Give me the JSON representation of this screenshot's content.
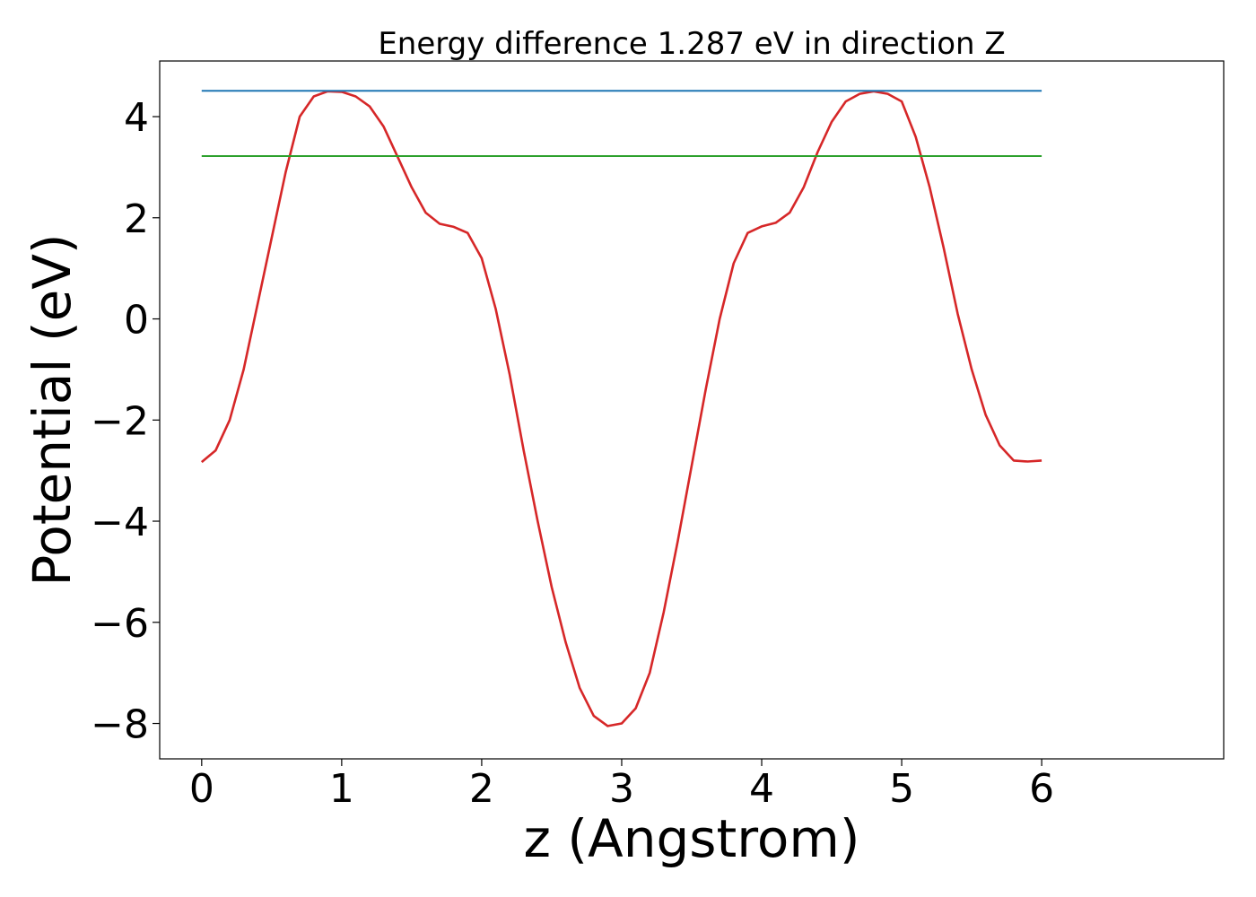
{
  "chart_data": {
    "type": "line",
    "title": "Energy difference 1.287 eV in direction Z",
    "xlabel": "z (Angstrom)",
    "ylabel": "Potential (eV)",
    "xlim": [
      -0.3,
      7.3
    ],
    "ylim": [
      -8.7,
      5.1
    ],
    "xticks": [
      0,
      1,
      2,
      3,
      4,
      5,
      6
    ],
    "xtick_labels": [
      "0",
      "1",
      "2",
      "3",
      "4",
      "5",
      "6"
    ],
    "yticks": [
      4,
      2,
      0,
      -2,
      -4,
      -6,
      -8
    ],
    "ytick_labels": [
      "4",
      "2",
      "0",
      "−2",
      "−4",
      "−6",
      "−8"
    ],
    "grid": false,
    "series": [
      {
        "color": "#d62728",
        "x": [
          0,
          0.1,
          0.2,
          0.3,
          0.4,
          0.5,
          0.6,
          0.7,
          0.8,
          0.9,
          1.0,
          1.1,
          1.2,
          1.3,
          1.4,
          1.5,
          1.6,
          1.7,
          1.8,
          1.9,
          2.0,
          2.1,
          2.2,
          2.3,
          2.4,
          2.5,
          2.6,
          2.7,
          2.8,
          2.9,
          3.0,
          3.1,
          3.2,
          3.3,
          3.4,
          3.5,
          3.6,
          3.7,
          3.8,
          3.9,
          4.0,
          4.1,
          4.2,
          4.3,
          4.4,
          4.5,
          4.6,
          4.7,
          4.8,
          4.9,
          5.0,
          5.1,
          5.2,
          5.3,
          5.4,
          5.5,
          5.6,
          5.7,
          5.8,
          5.9,
          6.0
        ],
        "values": [
          -2.83,
          -2.6,
          -2.0,
          -1.0,
          0.3,
          1.6,
          2.9,
          4.0,
          4.4,
          4.5,
          4.49,
          4.4,
          4.2,
          3.8,
          3.2,
          2.6,
          2.1,
          1.88,
          1.82,
          1.7,
          1.2,
          0.2,
          -1.1,
          -2.6,
          -4.0,
          -5.3,
          -6.4,
          -7.3,
          -7.85,
          -8.05,
          -8.0,
          -7.7,
          -7.0,
          -5.8,
          -4.4,
          -2.9,
          -1.4,
          0.0,
          1.1,
          1.7,
          1.83,
          1.9,
          2.1,
          2.6,
          3.3,
          3.9,
          4.3,
          4.45,
          4.5,
          4.45,
          4.3,
          3.6,
          2.6,
          1.4,
          0.1,
          -1.0,
          -1.9,
          -2.5,
          -2.8,
          -2.82,
          -2.8
        ]
      },
      {
        "color": "#1f77b4",
        "x": [
          0,
          6
        ],
        "values": [
          4.51,
          4.51
        ]
      },
      {
        "color": "#2ca02c",
        "x": [
          0,
          6
        ],
        "values": [
          3.22,
          3.22
        ]
      }
    ]
  }
}
